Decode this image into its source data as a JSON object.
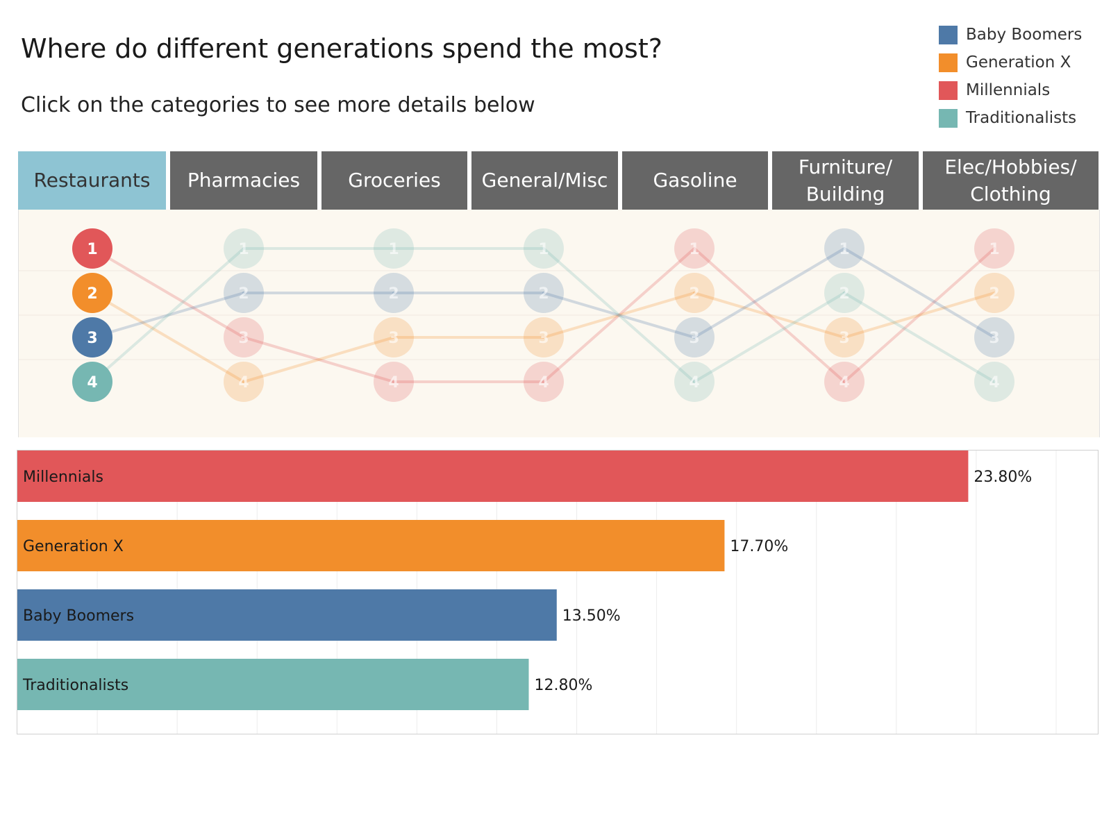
{
  "header": {
    "title": "Where do different generations spend the most?",
    "subtitle": "Click on the categories to see more details below"
  },
  "legend": {
    "items": [
      {
        "label": "Baby Boomers",
        "color": "#4e79a7"
      },
      {
        "label": "Generation X",
        "color": "#f28e2b"
      },
      {
        "label": "Millennials",
        "color": "#e15759"
      },
      {
        "label": "Traditionalists",
        "color": "#76b7b2"
      }
    ]
  },
  "tabs": [
    {
      "label": "Restaurants",
      "active": true
    },
    {
      "label": "Pharmacies",
      "active": false
    },
    {
      "label": "Groceries",
      "active": false
    },
    {
      "label": "General/Misc",
      "active": false
    },
    {
      "label": "Gasoline",
      "active": false
    },
    {
      "label": "Furniture/ Building",
      "active": false
    },
    {
      "label": "Elec/Hobbies/ Clothing",
      "active": false
    }
  ],
  "chart_data": [
    {
      "type": "line",
      "subtype": "bump",
      "categories": [
        "Restaurants",
        "Pharmacies",
        "Groceries",
        "General/Misc",
        "Gasoline",
        "Furniture/ Building",
        "Elec/Hobbies/ Clothing"
      ],
      "selected_category": "Restaurants",
      "y_reversed": true,
      "ylim": [
        1,
        4
      ],
      "series": [
        {
          "name": "Millennials",
          "color": "#e15759",
          "ranks": [
            1,
            3,
            4,
            4,
            1,
            4,
            1
          ]
        },
        {
          "name": "Generation X",
          "color": "#f28e2b",
          "ranks": [
            2,
            4,
            3,
            3,
            2,
            3,
            2
          ]
        },
        {
          "name": "Baby Boomers",
          "color": "#4e79a7",
          "ranks": [
            3,
            2,
            2,
            2,
            3,
            1,
            3
          ]
        },
        {
          "name": "Traditionalists",
          "color": "#76b7b2",
          "ranks": [
            4,
            1,
            1,
            1,
            4,
            2,
            4
          ]
        }
      ]
    },
    {
      "type": "bar",
      "orientation": "horizontal",
      "category": "Restaurants",
      "xlim": [
        0,
        26
      ],
      "grid": true,
      "bars": [
        {
          "label": "Millennials",
          "value": 23.8,
          "display": "23.80%",
          "color": "#e15759"
        },
        {
          "label": "Generation X",
          "value": 17.7,
          "display": "17.70%",
          "color": "#f28e2b"
        },
        {
          "label": "Baby Boomers",
          "value": 13.5,
          "display": "13.50%",
          "color": "#4e79a7"
        },
        {
          "label": "Traditionalists",
          "value": 12.8,
          "display": "12.80%",
          "color": "#76b7b2"
        }
      ]
    }
  ]
}
